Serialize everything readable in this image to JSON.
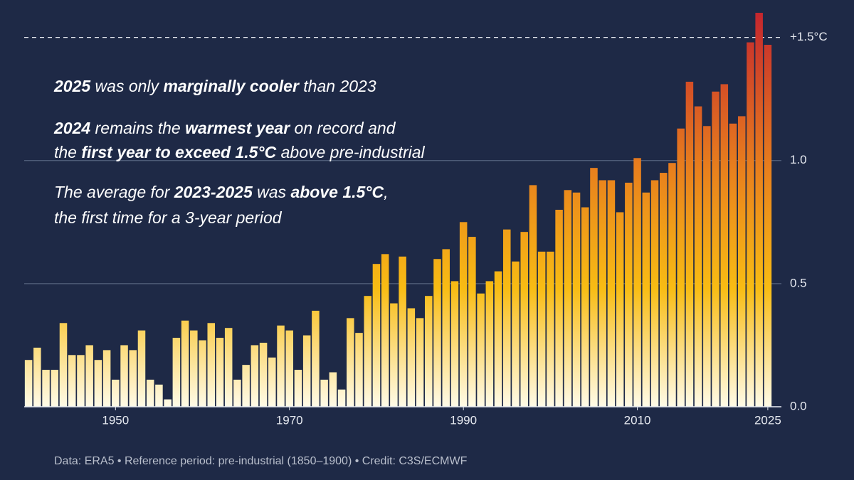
{
  "chart_data": {
    "type": "bar",
    "annotations": [
      [
        {
          "text": "2025",
          "bold": true
        },
        {
          "text": " was only ",
          "bold": false
        },
        {
          "text": "marginally cooler",
          "bold": true
        },
        {
          "text": " than 2023",
          "bold": false
        }
      ],
      [
        {
          "text": "2024",
          "bold": true
        },
        {
          "text": " remains the ",
          "bold": false
        },
        {
          "text": "warmest year",
          "bold": true
        },
        {
          "text": " on record and",
          "bold": false
        }
      ],
      [
        {
          "text": "the ",
          "bold": false
        },
        {
          "text": "first year to exceed 1.5°C",
          "bold": true
        },
        {
          "text": " above pre-industrial",
          "bold": false
        }
      ],
      [
        {
          "text": "The average for ",
          "bold": false
        },
        {
          "text": "2023-2025",
          "bold": true
        },
        {
          "text": " was ",
          "bold": false
        },
        {
          "text": "above 1.5°C",
          "bold": true
        },
        {
          "text": ",",
          "bold": false
        }
      ],
      [
        {
          "text": "the first time for a 3-year period",
          "bold": false
        }
      ]
    ],
    "footer": "Data: ERA5 • Reference period: pre-industrial (1850–1900) • Credit: C3S/ECMWF",
    "x": [
      1940,
      1941,
      1942,
      1943,
      1944,
      1945,
      1946,
      1947,
      1948,
      1949,
      1950,
      1951,
      1952,
      1953,
      1954,
      1955,
      1956,
      1957,
      1958,
      1959,
      1960,
      1961,
      1962,
      1963,
      1964,
      1965,
      1966,
      1967,
      1968,
      1969,
      1970,
      1971,
      1972,
      1973,
      1974,
      1975,
      1976,
      1977,
      1978,
      1979,
      1980,
      1981,
      1982,
      1983,
      1984,
      1985,
      1986,
      1987,
      1988,
      1989,
      1990,
      1991,
      1992,
      1993,
      1994,
      1995,
      1996,
      1997,
      1998,
      1999,
      2000,
      2001,
      2002,
      2003,
      2004,
      2005,
      2006,
      2007,
      2008,
      2009,
      2010,
      2011,
      2012,
      2013,
      2014,
      2015,
      2016,
      2017,
      2018,
      2019,
      2020,
      2021,
      2022,
      2023,
      2024,
      2025
    ],
    "values": [
      0.19,
      0.24,
      0.15,
      0.15,
      0.34,
      0.21,
      0.21,
      0.25,
      0.19,
      0.23,
      0.11,
      0.25,
      0.23,
      0.31,
      0.11,
      0.09,
      0.03,
      0.28,
      0.35,
      0.31,
      0.27,
      0.34,
      0.28,
      0.32,
      0.11,
      0.17,
      0.25,
      0.26,
      0.2,
      0.33,
      0.31,
      0.15,
      0.29,
      0.39,
      0.11,
      0.14,
      0.07,
      0.36,
      0.3,
      0.45,
      0.58,
      0.62,
      0.42,
      0.61,
      0.4,
      0.36,
      0.45,
      0.6,
      0.64,
      0.51,
      0.75,
      0.69,
      0.46,
      0.51,
      0.55,
      0.72,
      0.59,
      0.71,
      0.9,
      0.63,
      0.63,
      0.8,
      0.88,
      0.87,
      0.81,
      0.97,
      0.92,
      0.92,
      0.79,
      0.91,
      1.01,
      0.87,
      0.92,
      0.95,
      0.99,
      1.13,
      1.32,
      1.22,
      1.14,
      1.28,
      1.31,
      1.15,
      1.18,
      1.48,
      1.6,
      1.47
    ],
    "gradient": [
      "#fffbe8",
      "#f8bc14",
      "#e8801d",
      "#c4262e"
    ],
    "xlim": [
      1939.5,
      2025.5
    ],
    "xticks": [
      1950,
      1970,
      1990,
      2010,
      2025
    ],
    "ylim": [
      0,
      1.6
    ],
    "yticks": [
      {
        "value": 0,
        "label": "0.0"
      },
      0.5,
      {
        "value": 1,
        "label": "1.0"
      },
      {
        "value": 1.5,
        "label": "+1.5°C"
      }
    ],
    "grid": true
  }
}
